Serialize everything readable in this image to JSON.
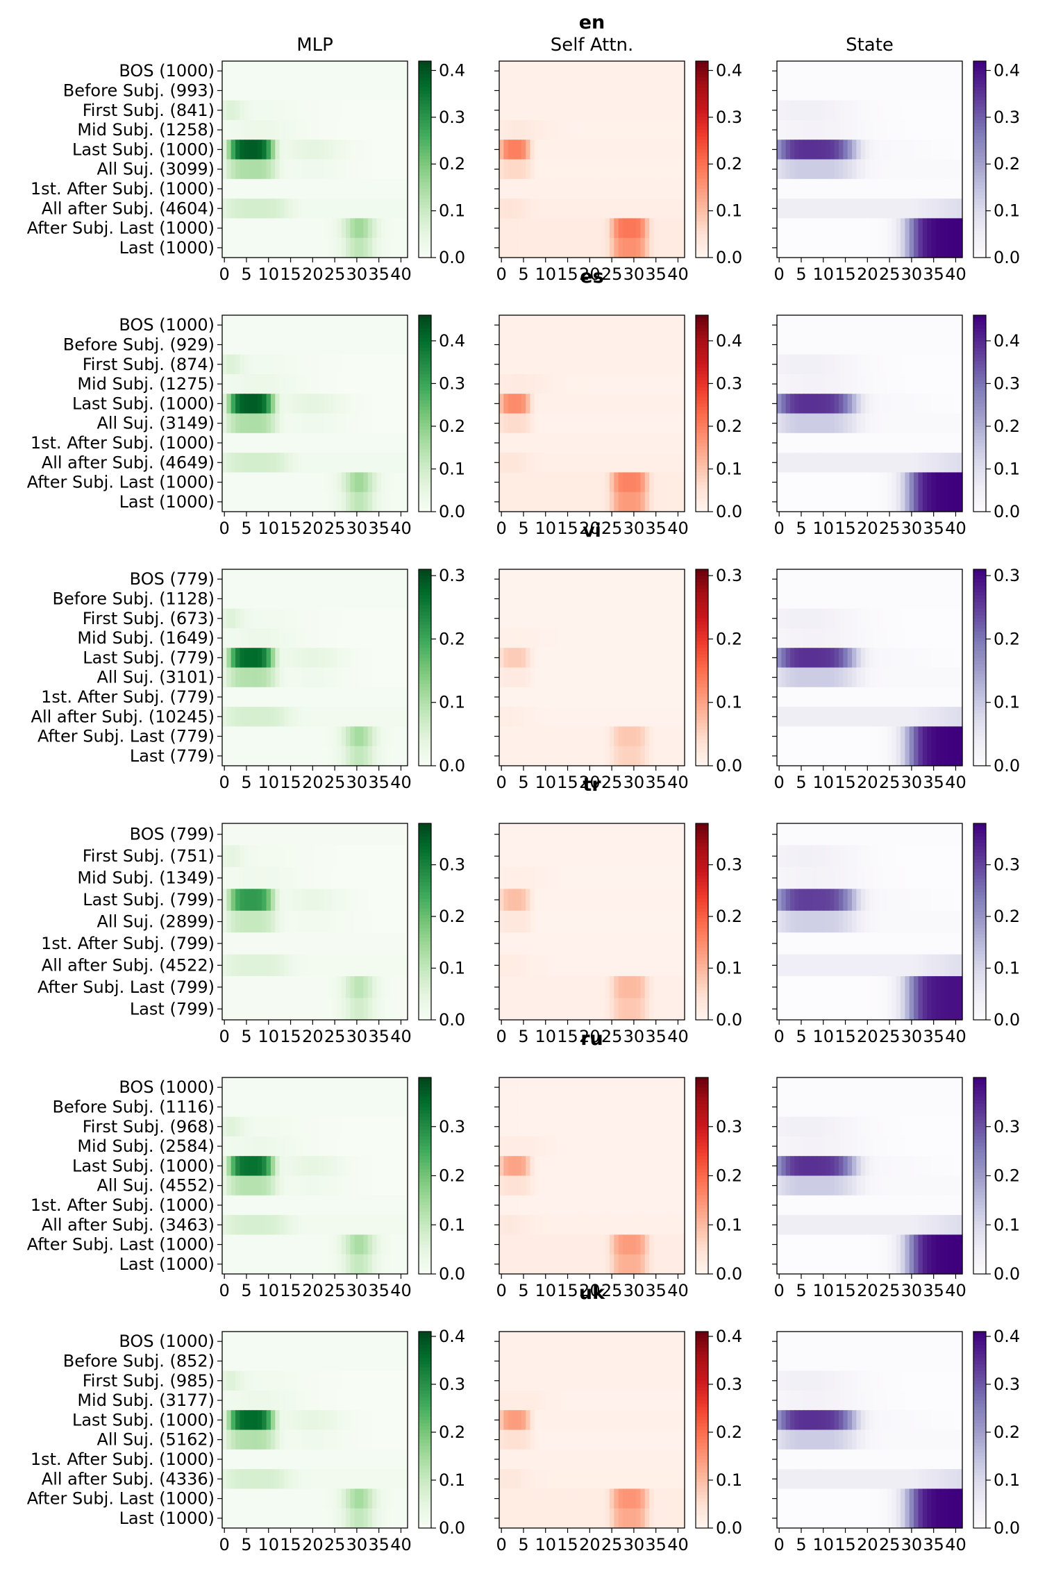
{
  "chart_data": {
    "type": "heatmap",
    "column_titles": [
      "MLP",
      "Self Attn.",
      "State"
    ],
    "colormaps": [
      "Greens",
      "Reds",
      "Purples"
    ],
    "x_ticks": [
      "0",
      "5",
      "10",
      "15",
      "20",
      "25",
      "30",
      "35",
      "40"
    ],
    "num_layers": 42,
    "panels": [
      {
        "language": "en",
        "rows": [
          "BOS (1000)",
          "Before Subj. (993)",
          "First Subj. (841)",
          "Mid Subj. (1258)",
          "Last Subj. (1000)",
          "All Suj. (3099)",
          "1st. After Subj. (1000)",
          "All after Subj. (4604)",
          "After Subj. Last (1000)",
          "Last (1000)"
        ],
        "vmax": 0.42,
        "cbar_ticks": [
          "0.0",
          "0.1",
          "0.2",
          "0.3",
          "0.4"
        ],
        "cbar_tick_values": [
          0.0,
          0.1,
          0.2,
          0.3,
          0.4
        ]
      },
      {
        "language": "es",
        "rows": [
          "BOS (1000)",
          "Before Subj. (929)",
          "First Subj. (874)",
          "Mid Subj. (1275)",
          "Last Subj. (1000)",
          "All Suj. (3149)",
          "1st. After Subj. (1000)",
          "All after Subj. (4649)",
          "After Subj. Last (1000)",
          "Last (1000)"
        ],
        "vmax": 0.46,
        "cbar_ticks": [
          "0.0",
          "0.1",
          "0.2",
          "0.3",
          "0.4"
        ],
        "cbar_tick_values": [
          0.0,
          0.1,
          0.2,
          0.3,
          0.4
        ]
      },
      {
        "language": "vi",
        "rows": [
          "BOS (779)",
          "Before Subj. (1128)",
          "First Subj. (673)",
          "Mid Subj. (1649)",
          "Last Subj. (779)",
          "All Suj. (3101)",
          "1st. After Subj. (779)",
          "All after Subj. (10245)",
          "After Subj. Last (779)",
          "Last (779)"
        ],
        "vmax": 0.31,
        "cbar_ticks": [
          "0.0",
          "0.1",
          "0.2",
          "0.3"
        ],
        "cbar_tick_values": [
          0.0,
          0.1,
          0.2,
          0.3
        ]
      },
      {
        "language": "tr",
        "rows": [
          "BOS (799)",
          "First Subj. (751)",
          "Mid Subj. (1349)",
          "Last Subj. (799)",
          "All Suj. (2899)",
          "1st. After Subj. (799)",
          "All after Subj. (4522)",
          "After Subj. Last (799)",
          "Last (799)"
        ],
        "vmax": 0.38,
        "cbar_ticks": [
          "0.0",
          "0.1",
          "0.2",
          "0.3"
        ],
        "cbar_tick_values": [
          0.0,
          0.1,
          0.2,
          0.3
        ]
      },
      {
        "language": "ru",
        "rows": [
          "BOS (1000)",
          "Before Subj. (1116)",
          "First Subj. (968)",
          "Mid Subj. (2584)",
          "Last Subj. (1000)",
          "All Suj. (4552)",
          "1st. After Subj. (1000)",
          "All after Subj. (3463)",
          "After Subj. Last (1000)",
          "Last (1000)"
        ],
        "vmax": 0.4,
        "cbar_ticks": [
          "0.0",
          "0.1",
          "0.2",
          "0.3"
        ],
        "cbar_tick_values": [
          0.0,
          0.1,
          0.2,
          0.3
        ]
      },
      {
        "language": "uk",
        "rows": [
          "BOS (1000)",
          "Before Subj. (852)",
          "First Subj. (985)",
          "Mid Subj. (3177)",
          "Last Subj. (1000)",
          "All Suj. (5162)",
          "1st. After Subj. (1000)",
          "All after Subj. (4336)",
          "After Subj. Last (1000)",
          "Last (1000)"
        ],
        "vmax": 0.41,
        "cbar_ticks": [
          "0.0",
          "0.1",
          "0.2",
          "0.3",
          "0.4"
        ],
        "cbar_tick_values": [
          0.0,
          0.1,
          0.2,
          0.3,
          0.4
        ]
      }
    ]
  }
}
